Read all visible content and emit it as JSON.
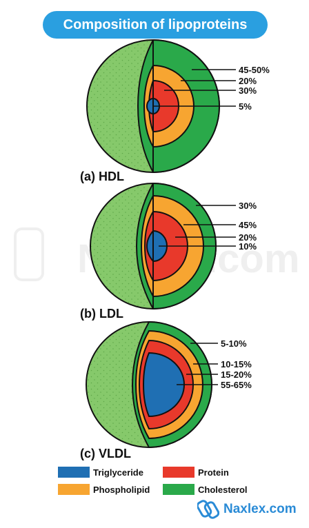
{
  "title": "Composition of lipoproteins",
  "colors": {
    "title_bg": "#2a9fe0",
    "triglyceride": "#1f6fb3",
    "protein": "#e8392b",
    "phospholipid": "#f7a531",
    "cholesterol": "#2aa94a",
    "outer_surface": "#86c96b"
  },
  "particles": [
    {
      "label": "(a) HDL",
      "layers": [
        {
          "component": "Cholesterol",
          "value": "45-50%"
        },
        {
          "component": "Phospholipid",
          "value": "20%"
        },
        {
          "component": "Protein",
          "value": "30%"
        },
        {
          "component": "Triglyceride",
          "value": "5%"
        }
      ]
    },
    {
      "label": "(b) LDL",
      "layers": [
        {
          "component": "Cholesterol",
          "value": "30%"
        },
        {
          "component": "Phospholipid",
          "value": "45%"
        },
        {
          "component": "Protein",
          "value": "20%"
        },
        {
          "component": "Triglyceride",
          "value": "10%"
        }
      ]
    },
    {
      "label": "(c) VLDL",
      "layers": [
        {
          "component": "Cholesterol",
          "value": "5-10%"
        },
        {
          "component": "Phospholipid",
          "value": "10-15%"
        },
        {
          "component": "Protein",
          "value": "15-20%"
        },
        {
          "component": "Triglyceride",
          "value": "55-65%"
        }
      ]
    }
  ],
  "legend": [
    {
      "label": "Triglyceride",
      "color": "#1f6fb3"
    },
    {
      "label": "Protein",
      "color": "#e8392b"
    },
    {
      "label": "Phospholipid",
      "color": "#f7a531"
    },
    {
      "label": "Cholesterol",
      "color": "#2aa94a"
    }
  ],
  "brand": "Naxlex.com",
  "watermark": "Naxlex.com"
}
